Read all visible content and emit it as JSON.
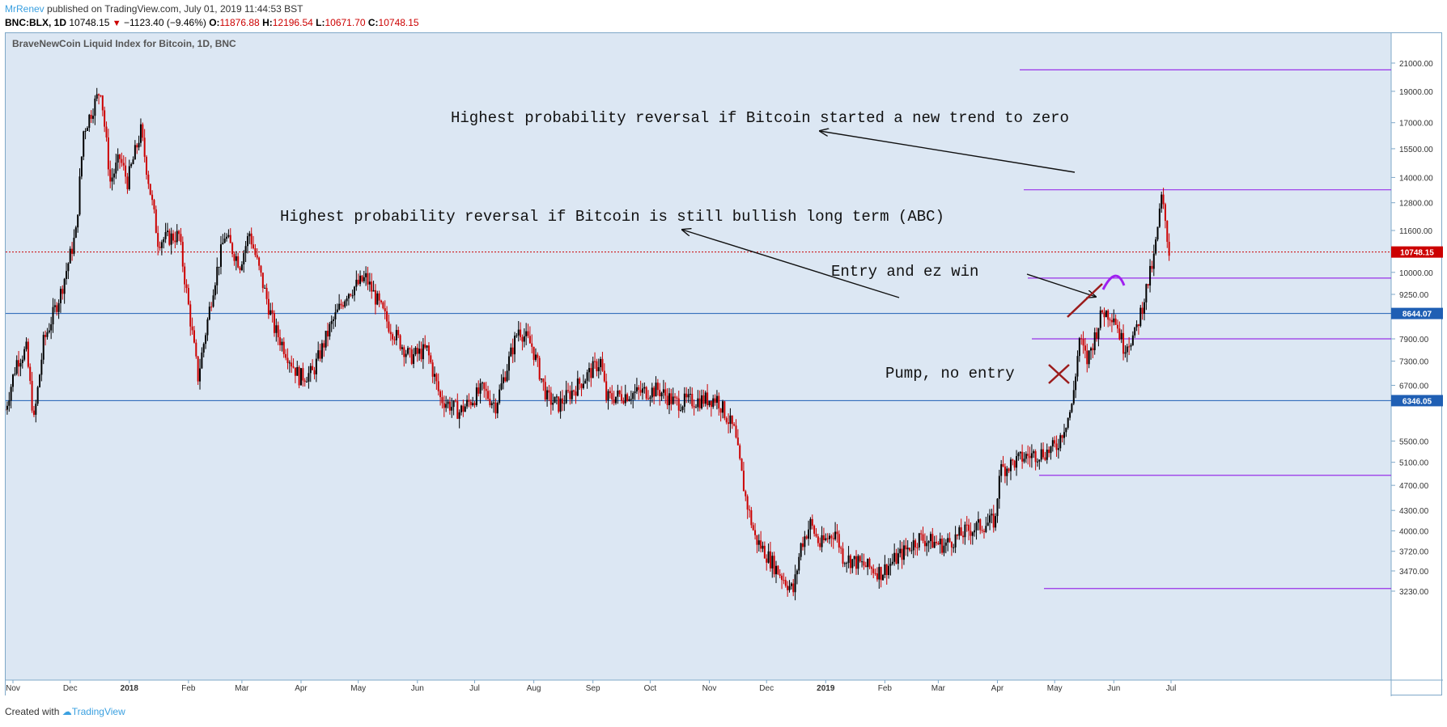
{
  "header": {
    "user": "MrRenev",
    "published": "published on TradingView.com, July 01, 2019 11:44:53 BST",
    "symbol": "BNC:BLX, 1D",
    "last": "10748.15",
    "change_arrow": "▼",
    "change": "−1123.40 (−9.46%)",
    "o_label": "O:",
    "o": "11876.88",
    "h_label": "H:",
    "h": "12196.54",
    "l_label": "L:",
    "l": "10671.70",
    "c_label": "C:",
    "c": "10748.15"
  },
  "footer": {
    "created": "Created with",
    "brand": "TradingView"
  },
  "colors": {
    "background": "#dce7f3",
    "up": "#000000",
    "down": "#cc0000",
    "purple": "#9932e8",
    "blue": "#1f5fb4"
  },
  "chart_data": {
    "type": "candlestick",
    "title": "BraveNewCoin Liquid Index for Bitcoin, 1D, BNC",
    "y_scale": "log",
    "y_ticks": [
      3230,
      3470,
      3720,
      4000,
      4300,
      4700,
      5100,
      5500,
      6700,
      7300,
      7900,
      9250,
      10000,
      11600,
      12800,
      14000,
      15500,
      17000,
      19000,
      21000
    ],
    "x_ticks": [
      "Nov",
      "Dec",
      "2018",
      "Feb",
      "Mar",
      "Apr",
      "May",
      "Jun",
      "Jul",
      "Aug",
      "Sep",
      "Oct",
      "Nov",
      "Dec",
      "2019",
      "Feb",
      "Mar",
      "Apr",
      "May",
      "Jun",
      "Jul"
    ],
    "price_path": [
      [
        "2017-10-28",
        6150
      ],
      [
        "2017-11-03",
        7300
      ],
      [
        "2017-11-08",
        7600
      ],
      [
        "2017-11-12",
        5900
      ],
      [
        "2017-11-17",
        7800
      ],
      [
        "2017-11-26",
        9300
      ],
      [
        "2017-12-04",
        11500
      ],
      [
        "2017-12-08",
        16500
      ],
      [
        "2017-12-17",
        19200
      ],
      [
        "2017-12-22",
        13800
      ],
      [
        "2017-12-27",
        15000
      ],
      [
        "2017-12-31",
        13800
      ],
      [
        "2018-01-07",
        16500
      ],
      [
        "2018-01-16",
        11200
      ],
      [
        "2018-01-27",
        11400
      ],
      [
        "2018-02-06",
        6900
      ],
      [
        "2018-02-14",
        9500
      ],
      [
        "2018-02-20",
        11400
      ],
      [
        "2018-02-28",
        10300
      ],
      [
        "2018-03-05",
        11500
      ],
      [
        "2018-03-18",
        8200
      ],
      [
        "2018-03-31",
        6900
      ],
      [
        "2018-04-07",
        7000
      ],
      [
        "2018-04-16",
        8200
      ],
      [
        "2018-04-25",
        9300
      ],
      [
        "2018-05-05",
        9800
      ],
      [
        "2018-05-17",
        8300
      ],
      [
        "2018-05-28",
        7400
      ],
      [
        "2018-06-06",
        7600
      ],
      [
        "2018-06-13",
        6400
      ],
      [
        "2018-06-23",
        6100
      ],
      [
        "2018-07-05",
        6600
      ],
      [
        "2018-07-12",
        6250
      ],
      [
        "2018-07-24",
        8200
      ],
      [
        "2018-07-31",
        7700
      ],
      [
        "2018-08-08",
        6400
      ],
      [
        "2018-08-14",
        6250
      ],
      [
        "2018-08-24",
        6700
      ],
      [
        "2018-09-05",
        7300
      ],
      [
        "2018-09-08",
        6400
      ],
      [
        "2018-09-20",
        6500
      ],
      [
        "2018-10-05",
        6600
      ],
      [
        "2018-10-14",
        6300
      ],
      [
        "2018-11-05",
        6400
      ],
      [
        "2018-11-14",
        5700
      ],
      [
        "2018-11-20",
        4500
      ],
      [
        "2018-11-25",
        3900
      ],
      [
        "2018-12-06",
        3500
      ],
      [
        "2018-12-15",
        3230
      ],
      [
        "2018-12-19",
        3800
      ],
      [
        "2018-12-24",
        4100
      ],
      [
        "2018-12-29",
        3800
      ],
      [
        "2019-01-06",
        4000
      ],
      [
        "2019-01-10",
        3650
      ],
      [
        "2019-01-30",
        3450
      ],
      [
        "2019-02-08",
        3650
      ],
      [
        "2019-02-19",
        3900
      ],
      [
        "2019-03-04",
        3800
      ],
      [
        "2019-03-16",
        4000
      ],
      [
        "2019-03-31",
        4150
      ],
      [
        "2019-04-02",
        4950
      ],
      [
        "2019-04-15",
        5200
      ],
      [
        "2019-04-27",
        5300
      ],
      [
        "2019-05-02",
        5400
      ],
      [
        "2019-05-10",
        6200
      ],
      [
        "2019-05-14",
        7900
      ],
      [
        "2019-05-18",
        7300
      ],
      [
        "2019-05-26",
        8700
      ],
      [
        "2019-06-01",
        8600
      ],
      [
        "2019-06-06",
        7700
      ],
      [
        "2019-06-12",
        8000
      ],
      [
        "2019-06-16",
        8900
      ],
      [
        "2019-06-22",
        10500
      ],
      [
        "2019-06-26",
        13000
      ],
      [
        "2019-06-28",
        12000
      ],
      [
        "2019-06-30",
        10748
      ]
    ],
    "horizontal_lines": [
      {
        "price": 10748.15,
        "label": "10748.15",
        "color": "#cc0000",
        "style": "dotted"
      },
      {
        "price": 8644.07,
        "label": "8644.07",
        "color": "#1f5fb4",
        "style": "solid"
      },
      {
        "price": 6346.05,
        "label": "6346.05",
        "color": "#1f5fb4",
        "style": "solid"
      }
    ],
    "purple_levels": [
      20500,
      13400,
      9800,
      7900,
      4870,
      3260
    ],
    "annotations": [
      {
        "text": "Highest probability reversal if Bitcoin started a new trend to zero"
      },
      {
        "text": "Highest probability reversal if Bitcoin is still bullish long term (ABC)"
      },
      {
        "text": "Entry and ez win"
      },
      {
        "text": "Pump, no entry"
      }
    ]
  }
}
